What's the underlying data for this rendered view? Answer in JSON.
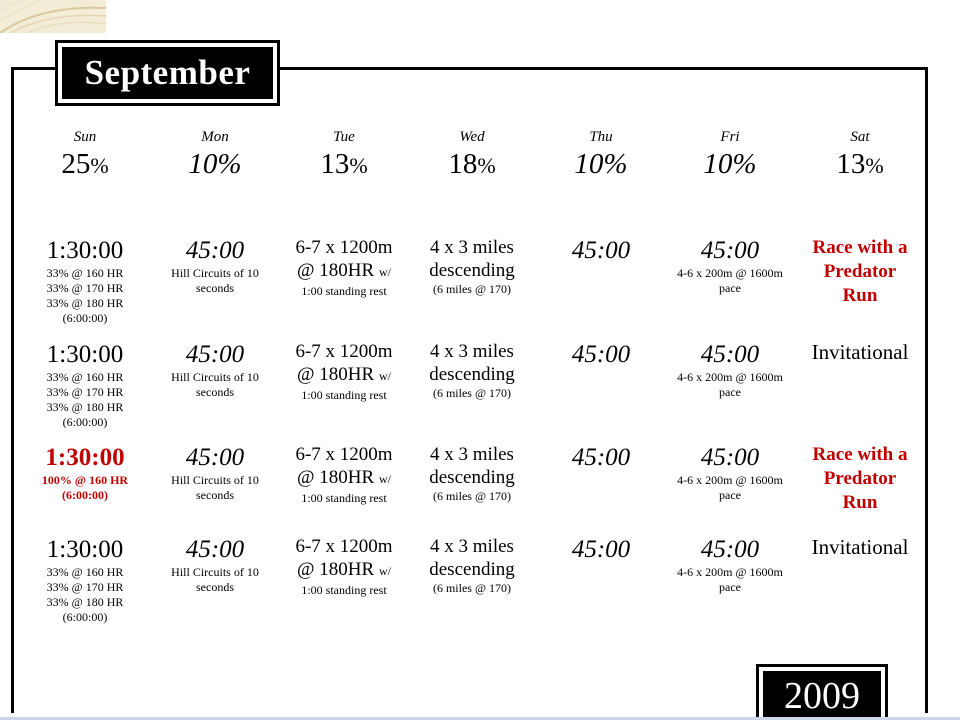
{
  "month": "September",
  "year": "2009",
  "days": [
    {
      "name": "Sun",
      "pct": "25",
      "sign": "%",
      "italic": false
    },
    {
      "name": "Mon",
      "pct": "10%",
      "sign": "",
      "italic": true
    },
    {
      "name": "Tue",
      "pct": "13",
      "sign": "%",
      "italic": false
    },
    {
      "name": "Wed",
      "pct": "18",
      "sign": "%",
      "italic": false
    },
    {
      "name": "Thu",
      "pct": "10%",
      "sign": "",
      "italic": true
    },
    {
      "name": "Fri",
      "pct": "10%",
      "sign": "",
      "italic": true
    },
    {
      "name": "Sat",
      "pct": "13",
      "sign": "%",
      "italic": false
    }
  ],
  "weeks": [
    {
      "sun": {
        "time": "1:30:00",
        "lines": [
          "33% @ 160 HR",
          "33% @ 170 HR",
          "33% @ 180 HR",
          "(6:00:00)"
        ],
        "red": false
      },
      "sat": {
        "type": "race",
        "lines": [
          "Race with a",
          "Predator",
          "Run"
        ]
      }
    },
    {
      "sun": {
        "time": "1:30:00",
        "lines": [
          "33% @ 160 HR",
          "33% @ 170 HR",
          "33% @ 180 HR",
          "(6:00:00)"
        ],
        "red": false
      },
      "sat": {
        "type": "invitational",
        "lines": [
          "Invitational"
        ]
      }
    },
    {
      "sun": {
        "time": "1:30:00",
        "lines": [
          "100% @ 160 HR",
          "(6:00:00)"
        ],
        "red": true
      },
      "sat": {
        "type": "race",
        "lines": [
          "Race with a",
          "Predator",
          "Run"
        ]
      }
    },
    {
      "sun": {
        "time": "1:30:00",
        "lines": [
          "33% @ 160 HR",
          "33% @ 170 HR",
          "33% @ 180 HR",
          "(6:00:00)"
        ],
        "red": false
      },
      "sat": {
        "type": "invitational",
        "lines": [
          "Invitational"
        ]
      }
    }
  ],
  "mon": {
    "time": "45:00",
    "line1": "Hill Circuits of 10",
    "line2": "seconds"
  },
  "tue": {
    "line1": "6-7 x 1200m",
    "line2": "@ 180HR",
    "line2_suffix": "w/",
    "line3": "1:00 standing rest"
  },
  "wed": {
    "line1": "4 x 3 miles",
    "line2": "descending",
    "line3": "(6 miles @ 170)"
  },
  "thu": {
    "time": "45:00"
  },
  "fri": {
    "time": "45:00",
    "line1": "4-6 x 200m @ 1600m",
    "line2": "pace"
  }
}
